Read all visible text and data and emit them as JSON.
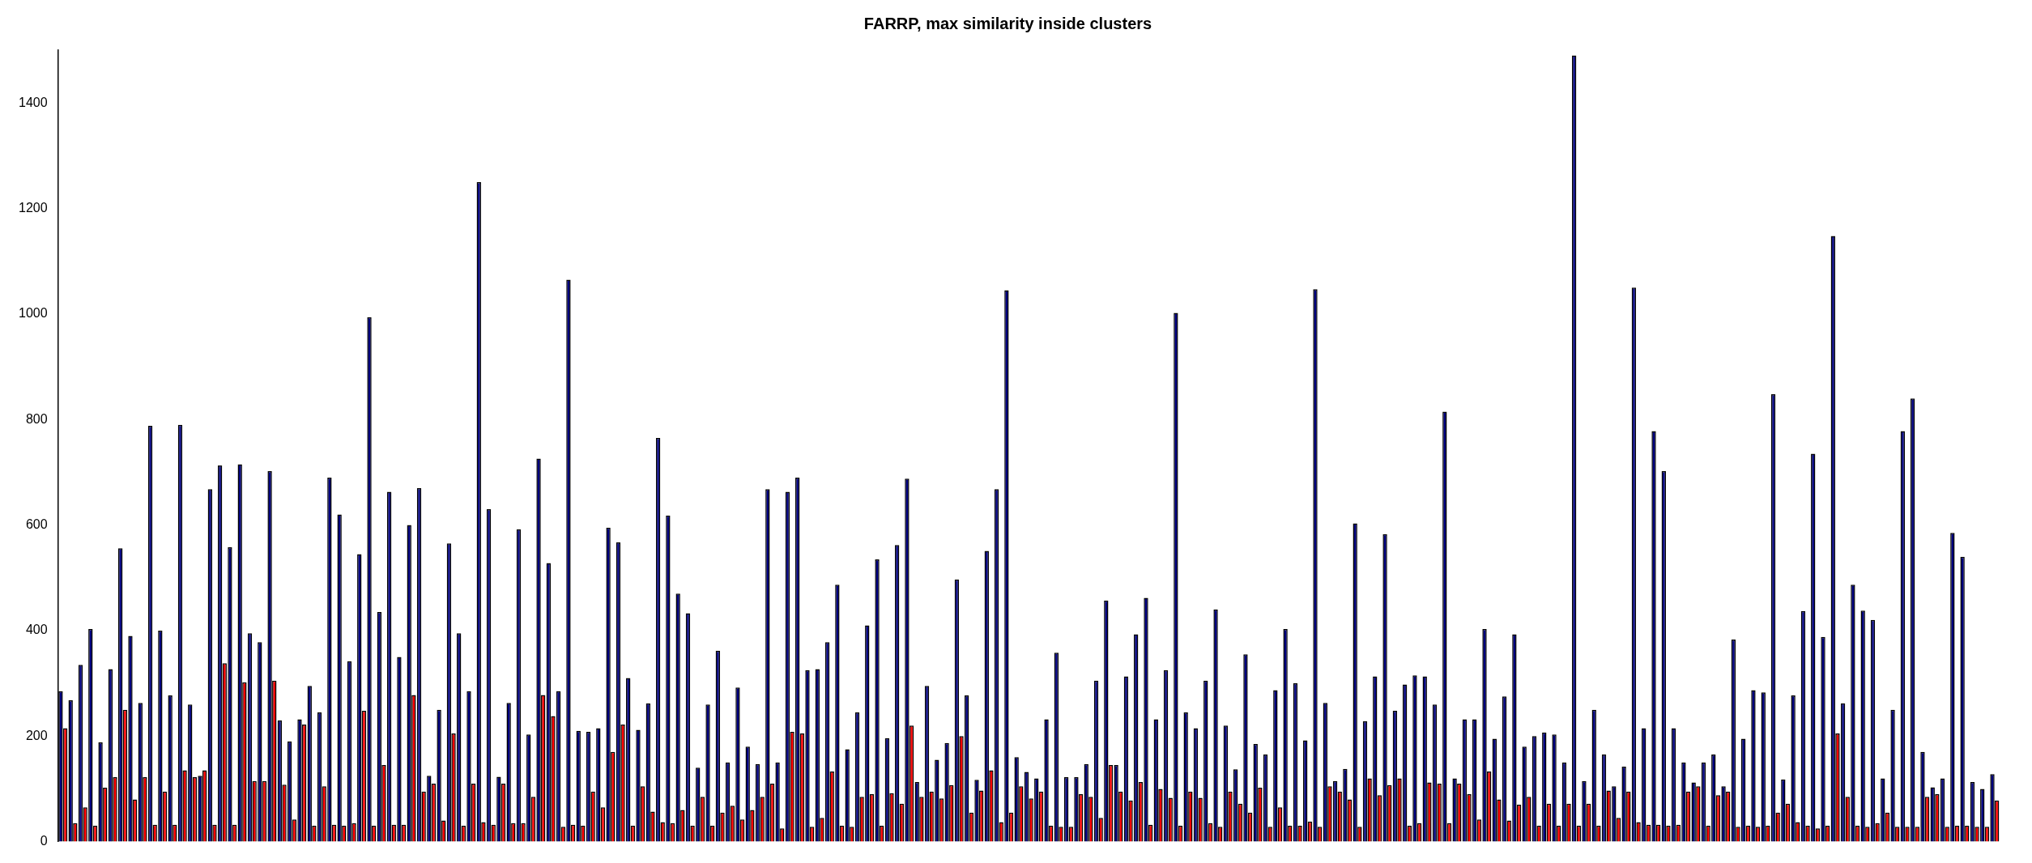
{
  "chart_data": {
    "type": "bar",
    "title": "FARRP, max similarity inside clusters",
    "categories": [
      null,
      null,
      null,
      null,
      null,
      null,
      null,
      null,
      null,
      null,
      null,
      null,
      null,
      null,
      null,
      null,
      null,
      null,
      null,
      null,
      null,
      null,
      null,
      null,
      null,
      null,
      null,
      null,
      null,
      null,
      null,
      null,
      null,
      null,
      null,
      null,
      null,
      null,
      null,
      null,
      null,
      null,
      null,
      null,
      null,
      null,
      null,
      null,
      null,
      null,
      null,
      null,
      null,
      null,
      null,
      null,
      null,
      null,
      null,
      null,
      null,
      null,
      null,
      null,
      null,
      null,
      null,
      null,
      null,
      null,
      null,
      null,
      null,
      null,
      null,
      null,
      null,
      null,
      null,
      null,
      null,
      null,
      null,
      null,
      null,
      null,
      null,
      null,
      null,
      null,
      null,
      null,
      null,
      null,
      null,
      null,
      null,
      null,
      null,
      null,
      null,
      null,
      null,
      null,
      null,
      null,
      null,
      null,
      null,
      null,
      null,
      null,
      null,
      null,
      null,
      null,
      null,
      null,
      null,
      null,
      null,
      null,
      null,
      null,
      null,
      null,
      null,
      null,
      null,
      null,
      null,
      null,
      null,
      null,
      null,
      null,
      null,
      null,
      null,
      null,
      null,
      null,
      null,
      null,
      null,
      null,
      null,
      null,
      null,
      null,
      null,
      null,
      null,
      null,
      null,
      null,
      null,
      null,
      null,
      null,
      null,
      null,
      null,
      null,
      null,
      null,
      null,
      null,
      null,
      null,
      null,
      null,
      null,
      null,
      null,
      null,
      null,
      null,
      null,
      null,
      null,
      null,
      null,
      null,
      null,
      null,
      null,
      null,
      null,
      null,
      null,
      null,
      null,
      null,
      null
    ],
    "series": [
      {
        "color": "#000080",
        "values": [
          285,
          268,
          335,
          403,
          188,
          327,
          556,
          390,
          263,
          788,
          400,
          277,
          790,
          260,
          125,
          668,
          713,
          558,
          715,
          395,
          378,
          702,
          230,
          190,
          232,
          295,
          245,
          690,
          620,
          342,
          545,
          994,
          435,
          663,
          350,
          600,
          670,
          125,
          250,
          565,
          395,
          285,
          1250,
          630,
          123,
          263,
          592,
          203,
          726,
          528,
          285,
          1065,
          210,
          208,
          215,
          595,
          567,
          310,
          212,
          262,
          765,
          618,
          470,
          433,
          140,
          260,
          362,
          150,
          292,
          180,
          147,
          668,
          150,
          663,
          690,
          325,
          327,
          378,
          487,
          175,
          245,
          410,
          535,
          196,
          562,
          688,
          113,
          295,
          155,
          187,
          497,
          277,
          117,
          551,
          668,
          1045,
          160,
          132,
          120,
          232,
          358,
          122,
          122,
          147,
          305,
          457,
          145,
          313,
          393,
          462,
          232,
          325,
          1002,
          245,
          215,
          305,
          440,
          220,
          137,
          355,
          185,
          165,
          287,
          403,
          300,
          192,
          1047,
          263,
          115,
          138,
          603,
          228,
          313,
          583,
          248,
          298,
          315,
          313,
          260,
          815,
          120,
          232,
          232,
          403,
          195,
          275,
          393,
          180,
          200,
          207,
          203,
          150,
          1490,
          115,
          250,
          165,
          105,
          142,
          1050,
          215,
          778,
          702,
          215,
          150,
          112,
          150,
          165,
          105,
          383,
          195,
          287,
          283,
          848,
          118,
          277,
          437,
          735,
          388,
          1148,
          262,
          487,
          438,
          420,
          120,
          250,
          778,
          840,
          170,
          103,
          120,
          585,
          540,
          113,
          100,
          128
        ]
      },
      {
        "color": "#ff0000",
        "values": [
          215,
          35,
          65,
          30,
          102,
          122,
          250,
          80,
          122,
          32,
          95,
          32,
          135,
          122,
          135,
          32,
          338,
          32,
          302,
          115,
          115,
          305,
          108,
          42,
          222,
          30,
          105,
          32,
          30,
          35,
          248,
          30,
          145,
          32,
          32,
          278,
          95,
          110,
          40,
          205,
          30,
          110,
          37,
          32,
          110,
          35,
          35,
          85,
          278,
          238,
          28,
          32,
          30,
          95,
          65,
          170,
          222,
          30,
          105,
          57,
          37,
          35,
          60,
          30,
          85,
          30,
          55,
          68,
          42,
          60,
          85,
          110,
          25,
          208,
          205,
          28,
          45,
          133,
          30,
          28,
          85,
          90,
          30,
          92,
          72,
          220,
          85,
          95,
          82,
          107,
          200,
          55,
          97,
          135,
          37,
          55,
          105,
          82,
          95,
          30,
          28,
          28,
          90,
          85,
          45,
          145,
          95,
          78,
          113,
          32,
          100,
          83,
          30,
          95,
          83,
          35,
          28,
          95,
          72,
          55,
          102,
          28,
          65,
          30,
          30,
          38,
          28,
          105,
          95,
          80,
          28,
          120,
          88,
          107,
          120,
          30,
          35,
          112,
          110,
          35,
          110,
          90,
          42,
          133,
          80,
          40,
          70,
          85,
          30,
          72,
          30,
          72,
          30,
          72,
          30,
          97,
          45,
          95,
          37,
          32,
          32,
          30,
          32,
          95,
          105,
          30,
          88,
          95,
          28,
          30,
          28,
          30,
          55,
          72,
          37,
          30,
          25,
          30,
          205,
          85,
          30,
          28,
          35,
          55,
          28,
          28,
          28,
          85,
          90,
          28,
          30,
          30,
          28,
          28,
          78
        ]
      }
    ],
    "ylim": [
      0,
      1500
    ],
    "yticks": [
      0,
      200,
      400,
      600,
      800,
      1000,
      1200,
      1400
    ],
    "grid": false,
    "legend": false
  }
}
